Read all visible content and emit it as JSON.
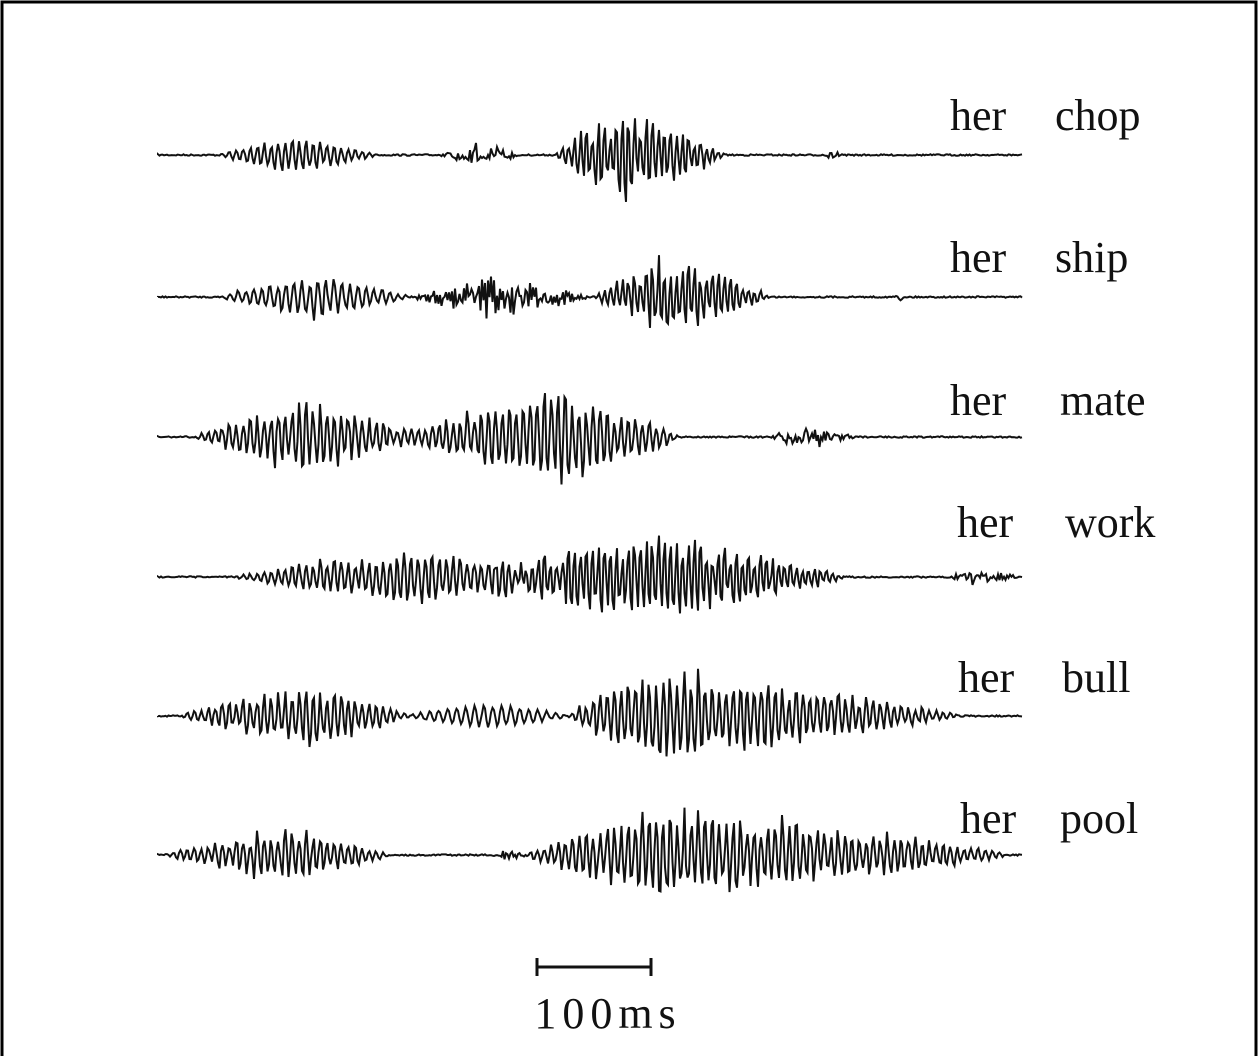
{
  "rows": [
    {
      "word1": "her",
      "word2": "chop"
    },
    {
      "word1": "her",
      "word2": "ship"
    },
    {
      "word1": "her",
      "word2": "mate"
    },
    {
      "word1": "her",
      "word2": "work"
    },
    {
      "word1": "her",
      "word2": "bull"
    },
    {
      "word1": "her",
      "word2": "pool"
    }
  ],
  "scale_label": "100ms"
}
